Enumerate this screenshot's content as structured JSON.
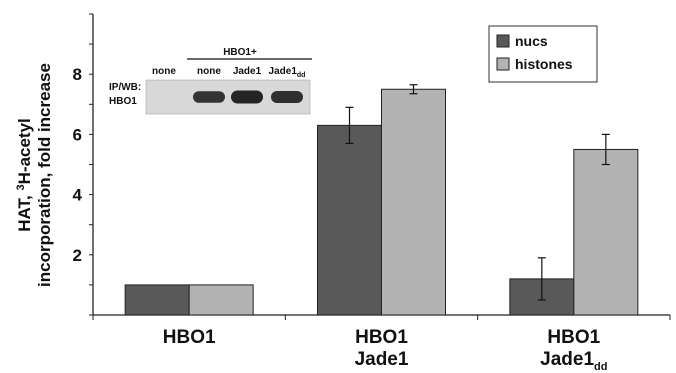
{
  "chart_data": {
    "type": "bar",
    "categories": [
      {
        "line1": "HBO1",
        "line2": "",
        "sub": ""
      },
      {
        "line1": "HBO1",
        "line2": "Jade1",
        "sub": ""
      },
      {
        "line1": "HBO1",
        "line2": "Jade1",
        "sub": "dd"
      }
    ],
    "series": [
      {
        "name": "nucs",
        "values": [
          1.0,
          6.3,
          1.2
        ],
        "errors": [
          0.0,
          0.6,
          0.7
        ],
        "color": "#595959"
      },
      {
        "name": "histones",
        "values": [
          1.0,
          7.5,
          5.5
        ],
        "errors": [
          0.0,
          0.15,
          0.5
        ],
        "color": "#b3b3b3"
      }
    ],
    "ylabel_line1": "HAT, ",
    "ylabel_sup": "3",
    "ylabel_line1_rest": "H-acetyl",
    "ylabel_line2": "incorporation, fold increase",
    "yticks": [
      2,
      4,
      6,
      8
    ],
    "ylim": [
      0,
      10
    ],
    "legend_position": "top-right",
    "grid": false
  },
  "inset": {
    "group_label": "HBO1+",
    "lanes": [
      {
        "label": "none",
        "sub": "",
        "band": 0
      },
      {
        "label": "none",
        "sub": "",
        "band": 0.8
      },
      {
        "label": "Jade1",
        "sub": "",
        "band": 1.0
      },
      {
        "label": "Jade1",
        "sub": "dd",
        "band": 0.85
      }
    ],
    "side_label_1": "IP/WB:",
    "side_label_2": "HBO1"
  }
}
